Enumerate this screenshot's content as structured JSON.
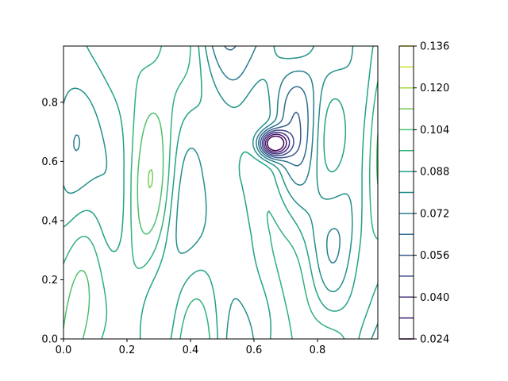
{
  "chart_data": {
    "type": "contour",
    "title": "",
    "xlabel": "",
    "ylabel": "",
    "xlim": [
      0.0,
      0.99
    ],
    "ylim": [
      0.0,
      0.99
    ],
    "x_ticks": [
      0.0,
      0.2,
      0.4,
      0.6,
      0.8
    ],
    "y_ticks": [
      0.0,
      0.2,
      0.4,
      0.6,
      0.8
    ],
    "x_tick_labels": [
      "0.0",
      "0.2",
      "0.4",
      "0.6",
      "0.8"
    ],
    "y_tick_labels": [
      "0.0",
      "0.2",
      "0.4",
      "0.6",
      "0.8"
    ],
    "colormap": "viridis",
    "colorbar": {
      "levels": [
        0.024,
        0.032,
        0.04,
        0.048,
        0.056,
        0.064,
        0.072,
        0.08,
        0.088,
        0.096,
        0.104,
        0.112,
        0.12,
        0.128,
        0.136
      ],
      "tick_values": [
        0.024,
        0.04,
        0.056,
        0.072,
        0.088,
        0.104,
        0.12,
        0.136
      ],
      "tick_labels": [
        "0.024",
        "0.040",
        "0.056",
        "0.072",
        "0.088",
        "0.104",
        "0.120",
        "0.136"
      ]
    },
    "minimum": {
      "x": 0.66,
      "y": 0.66,
      "value": 0.024
    },
    "grid": false,
    "legend": "none"
  },
  "colors": {
    "viridis_stops": [
      "#440154",
      "#482878",
      "#3e4989",
      "#31688e",
      "#26828e",
      "#1f9e89",
      "#35b779",
      "#6ece58",
      "#b5de2b",
      "#fde725"
    ]
  }
}
